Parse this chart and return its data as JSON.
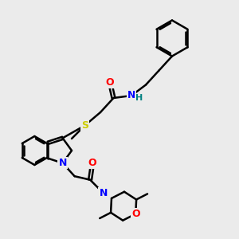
{
  "background_color": "#ebebeb",
  "atom_colors": {
    "C": "#000000",
    "N": "#0000ff",
    "O": "#ff0000",
    "S": "#cccc00",
    "H": "#008080"
  },
  "bond_color": "#000000",
  "bond_width": 1.8,
  "font_size_atom": 9
}
